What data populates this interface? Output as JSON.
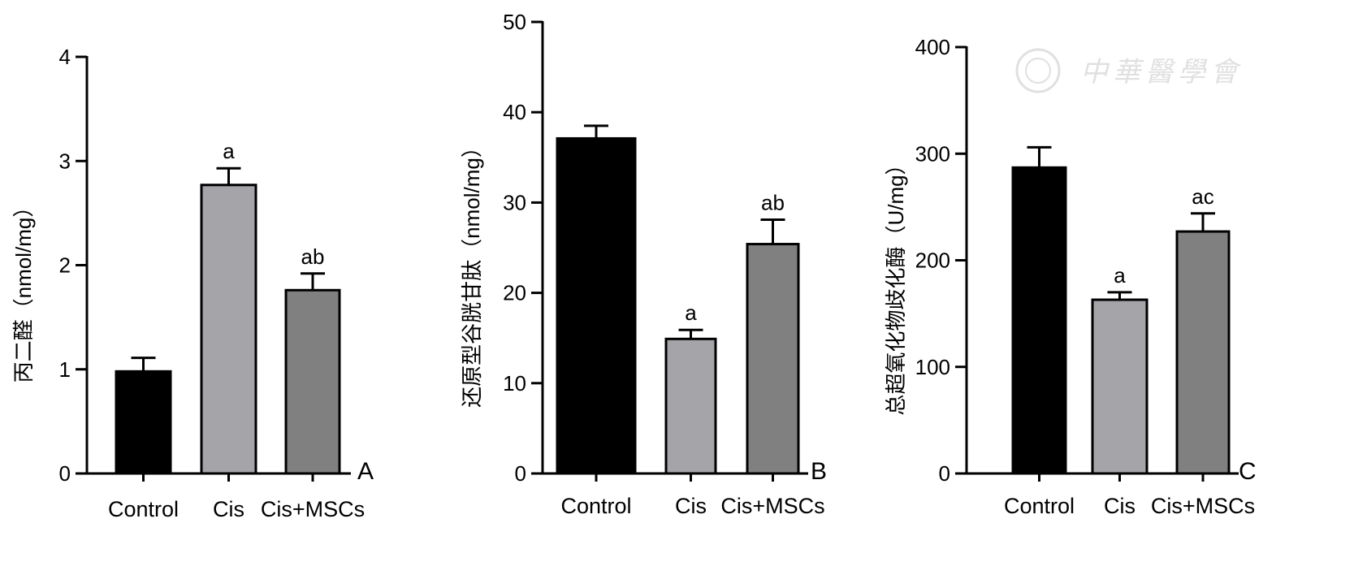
{
  "chart_data": [
    {
      "type": "bar",
      "panel_label": "A",
      "ylabel": "丙二醛（nmol/mg）",
      "ylim": [
        0,
        4
      ],
      "yticks": [
        "0",
        "1",
        "2",
        "3",
        "4"
      ],
      "categories": [
        "Control",
        "Cis",
        "Cis+MSCs"
      ],
      "values": [
        0.98,
        2.77,
        1.76
      ],
      "error_upper": [
        1.11,
        2.93,
        1.92
      ],
      "annotations": [
        "",
        "a",
        "ab"
      ]
    },
    {
      "type": "bar",
      "panel_label": "B",
      "ylabel": "还原型谷胱甘肽（nmol/mg）",
      "ylim": [
        0,
        50
      ],
      "yticks": [
        "0",
        "10",
        "20",
        "30",
        "40",
        "50"
      ],
      "categories": [
        "Control",
        "Cis",
        "Cis+MSCs"
      ],
      "values": [
        37.1,
        14.9,
        25.4
      ],
      "error_upper": [
        38.5,
        15.9,
        28.1
      ],
      "annotations": [
        "",
        "a",
        "ab"
      ]
    },
    {
      "type": "bar",
      "panel_label": "C",
      "ylabel": "总超氧化物歧化酶（U/mg）",
      "ylim": [
        0,
        400
      ],
      "yticks": [
        "0",
        "100",
        "200",
        "300",
        "400"
      ],
      "categories": [
        "Control",
        "Cis",
        "Cis+MSCs"
      ],
      "values": [
        287,
        163,
        227
      ],
      "error_upper": [
        306,
        170,
        244
      ],
      "annotations": [
        "",
        "a",
        "ac"
      ]
    }
  ],
  "colors": [
    "#000000",
    "#a4a4a9",
    "#808080"
  ],
  "watermark": "中華醫學會"
}
